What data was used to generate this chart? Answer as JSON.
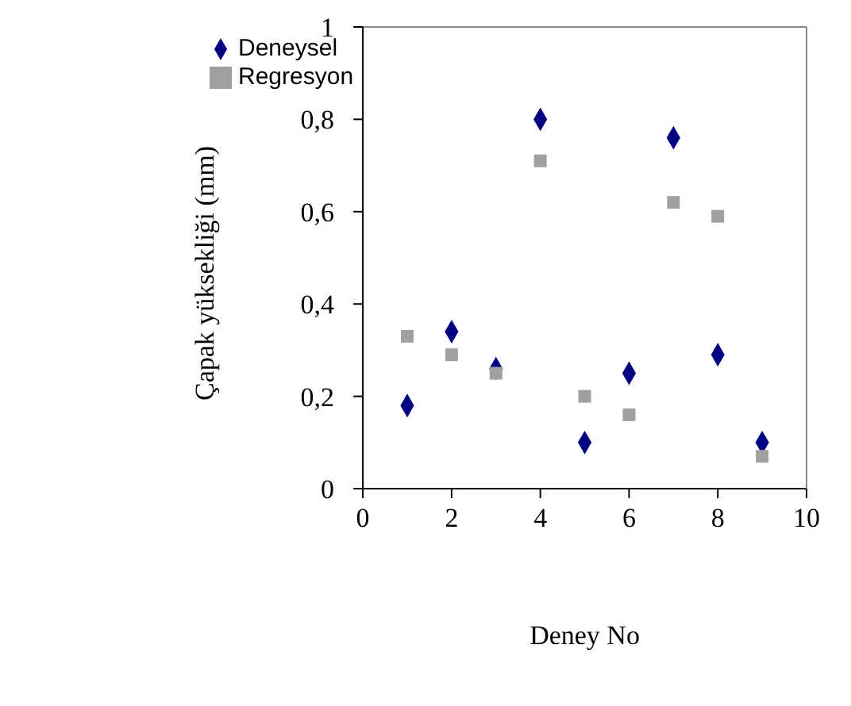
{
  "chart_data": {
    "type": "scatter",
    "xlabel": "Deney No",
    "ylabel": "Çapak yüksekliği (mm)",
    "x": [
      1,
      2,
      3,
      4,
      5,
      6,
      7,
      8,
      9
    ],
    "series": [
      {
        "name": "Deneysel",
        "color": "#000080",
        "marker": "diamond",
        "values": [
          0.18,
          0.34,
          0.26,
          0.8,
          0.1,
          0.25,
          0.76,
          0.29,
          0.1
        ]
      },
      {
        "name": "Regresyon",
        "color": "#a0a0a0",
        "marker": "square",
        "values": [
          0.33,
          0.29,
          0.25,
          0.71,
          0.2,
          0.16,
          0.62,
          0.59,
          0.07
        ]
      }
    ],
    "xlim": [
      0,
      10
    ],
    "xticks": [
      0,
      2,
      4,
      6,
      8,
      10
    ],
    "ylim": [
      0,
      1
    ],
    "yticks": [
      0,
      {
        "value": 0.2,
        "label": "0,2"
      },
      {
        "value": 0.4,
        "label": "0,4"
      },
      {
        "value": 0.6,
        "label": "0,6"
      },
      {
        "value": 0.8,
        "label": "0,8"
      },
      1
    ],
    "legend": "top left"
  }
}
